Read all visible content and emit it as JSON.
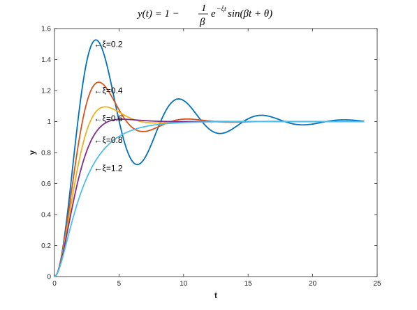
{
  "chart_data": {
    "type": "line",
    "title": "y(t) = 1 − (1/β) e^(−ξt) sin(βt + θ)",
    "xlabel": "t",
    "ylabel": "y",
    "xlim": [
      0,
      25
    ],
    "ylim": [
      0,
      1.6
    ],
    "xticks": [
      0,
      5,
      10,
      15,
      20,
      25
    ],
    "yticks": [
      0,
      0.2,
      0.4,
      0.6,
      0.8,
      1,
      1.2,
      1.4,
      1.6
    ],
    "grid": false,
    "t_end": 24,
    "series": [
      {
        "xi": 0.2,
        "color": "#0072BD",
        "annotation": "←ξ=0.2",
        "annotation_at": [
          3.06,
          1.5
        ]
      },
      {
        "xi": 0.4,
        "color": "#D95319",
        "annotation": "←ξ=0.4",
        "annotation_at": [
          3.06,
          1.2
        ]
      },
      {
        "xi": 0.6,
        "color": "#EDB120",
        "annotation": "←ξ=0.6",
        "annotation_at": [
          3.06,
          1.02
        ]
      },
      {
        "xi": 0.8,
        "color": "#7E2F8E",
        "annotation": "←ξ=0.8",
        "annotation_at": [
          3.06,
          0.88
        ]
      },
      {
        "xi": 1.2,
        "color": "#4DBEEE",
        "annotation": "←ξ=1.2",
        "annotation_at": [
          3.06,
          0.7
        ]
      }
    ]
  }
}
